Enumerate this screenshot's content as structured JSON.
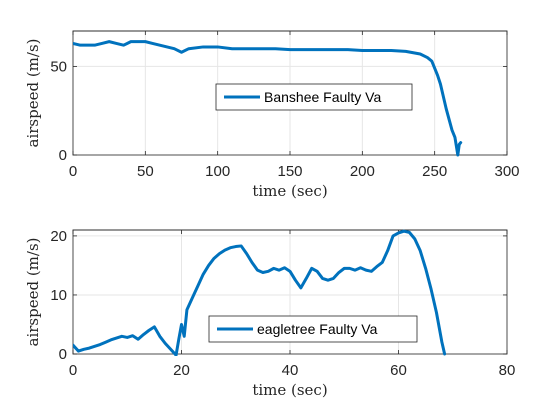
{
  "chart_data": [
    {
      "type": "line",
      "xlabel": "time (sec)",
      "ylabel": "airspeed (m/s)",
      "xlim": [
        0,
        300
      ],
      "ylim": [
        0,
        70
      ],
      "xticks": [
        0,
        50,
        100,
        150,
        200,
        250,
        300
      ],
      "yticks": [
        0,
        50
      ],
      "grid": true,
      "legend": "center",
      "series": [
        {
          "name": "Banshee Faulty Va",
          "color": "#0072BD",
          "x": [
            0,
            5,
            10,
            15,
            20,
            25,
            30,
            35,
            40,
            45,
            50,
            55,
            60,
            65,
            70,
            75,
            80,
            90,
            100,
            110,
            120,
            130,
            140,
            150,
            160,
            170,
            180,
            190,
            200,
            210,
            220,
            230,
            240,
            245,
            248,
            250,
            252,
            254,
            256,
            258,
            260,
            262,
            264,
            265,
            266,
            267,
            268
          ],
          "y": [
            63,
            62,
            62,
            62,
            63,
            64,
            63,
            62,
            64,
            64,
            64,
            63,
            62,
            61,
            60,
            58,
            60,
            61,
            61,
            60,
            60,
            60,
            60,
            59.5,
            59.5,
            59.5,
            59.5,
            59.5,
            59,
            59,
            59,
            58.5,
            57,
            55,
            53,
            49,
            45,
            40,
            33,
            26,
            20,
            14,
            10,
            5,
            0,
            6,
            7
          ]
        }
      ]
    },
    {
      "type": "line",
      "xlabel": "time (sec)",
      "ylabel": "airspeed (m/s)",
      "xlim": [
        0,
        80
      ],
      "ylim": [
        0,
        21
      ],
      "xticks": [
        0,
        20,
        40,
        60,
        80
      ],
      "yticks": [
        0,
        10,
        20
      ],
      "grid": true,
      "legend": "bottom-center",
      "series": [
        {
          "name": "eagletree Faulty Va",
          "color": "#0072BD",
          "x": [
            0,
            1,
            2,
            3,
            4,
            5,
            6,
            7,
            8,
            9,
            10,
            11,
            12,
            13,
            14,
            15,
            16,
            17,
            18,
            19,
            19.5,
            20,
            20.5,
            21,
            22,
            23,
            24,
            25,
            26,
            27,
            28,
            29,
            30,
            31,
            32,
            33,
            34,
            35,
            36,
            37,
            38,
            39,
            40,
            41,
            42,
            43,
            44,
            45,
            46,
            47,
            48,
            49,
            50,
            51,
            52,
            53,
            54,
            55,
            56,
            57,
            58,
            59,
            60,
            61,
            62,
            63,
            64,
            65,
            66,
            67,
            68,
            68.5
          ],
          "y": [
            1.5,
            0.5,
            0.8,
            1.0,
            1.3,
            1.6,
            2.0,
            2.4,
            2.7,
            3.0,
            2.8,
            3.1,
            2.5,
            3.3,
            4.0,
            4.6,
            3.0,
            1.8,
            0.8,
            -0.2,
            2.5,
            5.0,
            3.0,
            7.5,
            9.5,
            11.5,
            13.5,
            15.0,
            16.2,
            17.0,
            17.6,
            18.0,
            18.2,
            18.3,
            17.0,
            15.5,
            14.2,
            13.8,
            14.0,
            14.5,
            14.2,
            14.6,
            14.0,
            12.5,
            11.2,
            12.8,
            14.5,
            14.0,
            12.8,
            12.5,
            12.8,
            13.8,
            14.5,
            14.5,
            14.2,
            14.6,
            14.2,
            14.0,
            14.8,
            15.5,
            17.5,
            20.0,
            20.5,
            20.8,
            20.6,
            19.5,
            17.5,
            14.5,
            11.0,
            7.0,
            2.0,
            0.0
          ]
        }
      ]
    }
  ]
}
